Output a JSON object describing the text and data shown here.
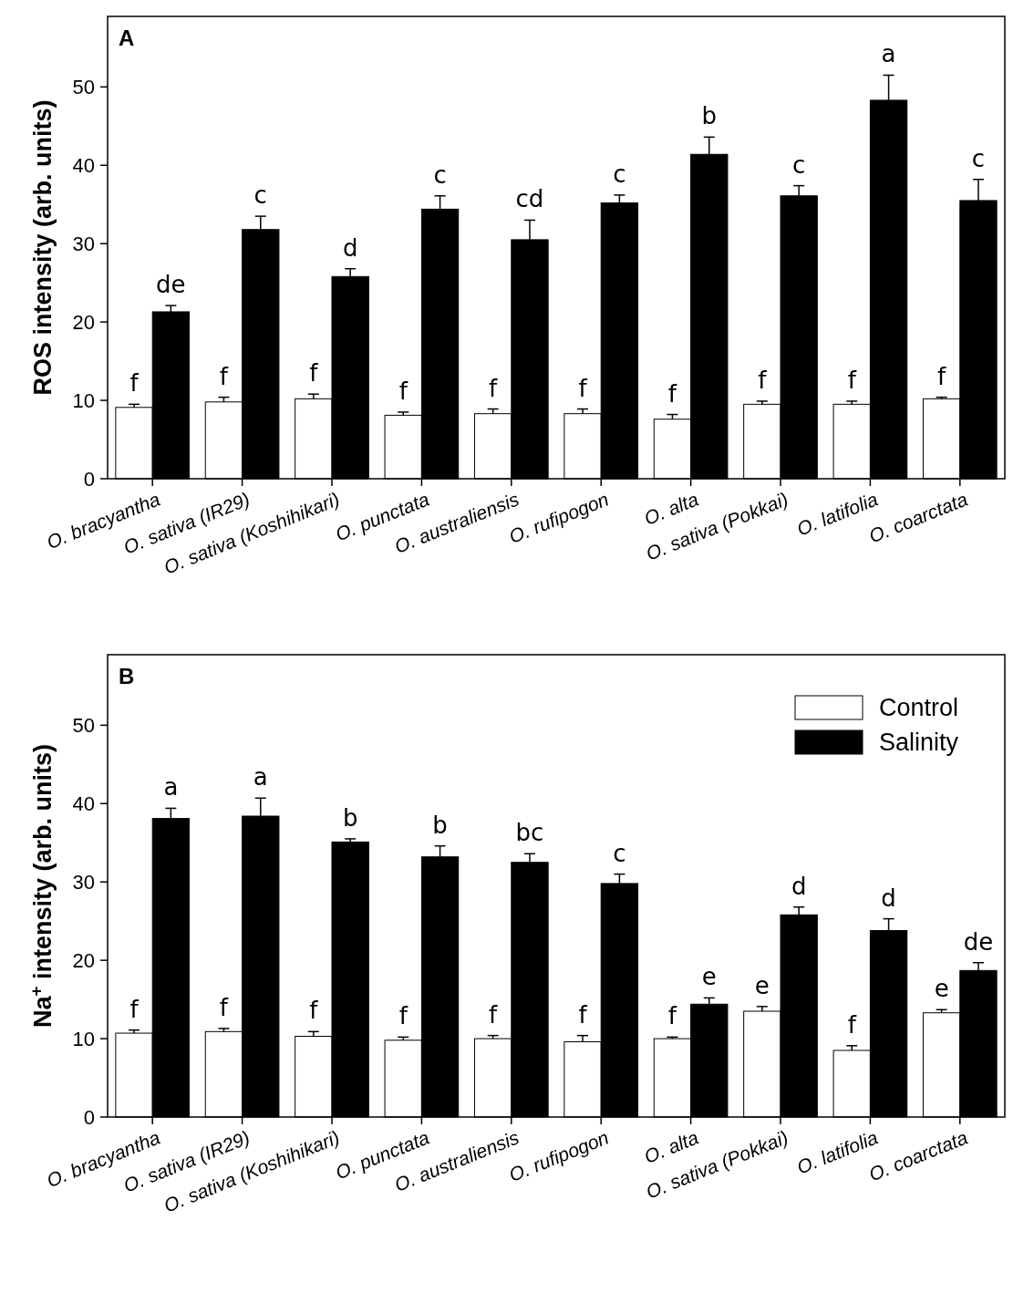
{
  "chart_data": [
    {
      "type": "bar",
      "title": "A",
      "ylabel": "ROS intensity (arb. units)",
      "categories": [
        "O. bracyantha",
        "O. sativa (IR29)",
        "O. sativa (Koshihikari)",
        "O. punctata",
        "O. australiensis",
        "O. rufipogon",
        "O. alta",
        "O. sativa (Pokkai)",
        "O. latifolia",
        "O. coarctata"
      ],
      "series": [
        {
          "color": "#ffffff",
          "values": [
            9.1,
            9.8,
            10.2,
            8.1,
            8.3,
            8.3,
            7.6,
            9.5,
            9.5,
            10.2
          ],
          "errors": [
            0.4,
            0.6,
            0.6,
            0.4,
            0.6,
            0.6,
            0.6,
            0.4,
            0.4,
            0.2
          ]
        },
        {
          "color": "#000000",
          "values": [
            21.3,
            31.8,
            25.8,
            34.4,
            30.5,
            35.2,
            41.4,
            36.1,
            48.3,
            35.5
          ],
          "errors": [
            0.8,
            1.7,
            1.0,
            1.7,
            2.5,
            1.0,
            2.2,
            1.3,
            3.2,
            2.7
          ]
        }
      ],
      "ylim": [
        0,
        59
      ],
      "yticks": [
        0,
        10,
        20,
        30,
        40,
        50
      ],
      "legend": false,
      "annotations": [
        {
          "text": "f",
          "x": "O. bracyantha",
          "y": 9.1
        },
        {
          "text": "de",
          "x": "O. bracyantha",
          "y": 21.3
        },
        {
          "text": "f",
          "x": "O. sativa (IR29)",
          "y": 9.8
        },
        {
          "text": "c",
          "x": "O. sativa (IR29)",
          "y": 31.8
        },
        {
          "text": "f",
          "x": "O. sativa (Koshihikari)",
          "y": 10.2
        },
        {
          "text": "d",
          "x": "O. sativa (Koshihikari)",
          "y": 25.8
        },
        {
          "text": "f",
          "x": "O. punctata",
          "y": 8.1
        },
        {
          "text": "c",
          "x": "O. punctata",
          "y": 34.4
        },
        {
          "text": "f",
          "x": "O. australiensis",
          "y": 8.3
        },
        {
          "text": "cd",
          "x": "O. australiensis",
          "y": 30.5
        },
        {
          "text": "f",
          "x": "O. rufipogon",
          "y": 8.3
        },
        {
          "text": "c",
          "x": "O. rufipogon",
          "y": 35.2
        },
        {
          "text": "f",
          "x": "O. alta",
          "y": 7.6
        },
        {
          "text": "b",
          "x": "O. alta",
          "y": 41.4
        },
        {
          "text": "f",
          "x": "O. sativa (Pokkai)",
          "y": 9.5
        },
        {
          "text": "c",
          "x": "O. sativa (Pokkai)",
          "y": 36.1
        },
        {
          "text": "f",
          "x": "O. latifolia",
          "y": 9.5
        },
        {
          "text": "a",
          "x": "O. latifolia",
          "y": 48.3
        },
        {
          "text": "f",
          "x": "O. coarctata",
          "y": 10.2
        },
        {
          "text": "c",
          "x": "O. coarctata",
          "y": 35.5
        }
      ]
    },
    {
      "type": "bar",
      "title": "B",
      "ylabel": "Na$^{+}$ intensity (arb. units)",
      "categories": [
        "O. bracyantha",
        "O. sativa (IR29)",
        "O. sativa (Koshihikari)",
        "O. punctata",
        "O. australiensis",
        "O. rufipogon",
        "O. alta",
        "O. sativa (Pokkai)",
        "O. latifolia",
        "O. coarctata"
      ],
      "series": [
        {
          "name": "Control",
          "color": "#ffffff",
          "values": [
            10.7,
            10.9,
            10.3,
            9.8,
            10.0,
            9.6,
            10.0,
            13.5,
            8.5,
            13.3
          ],
          "errors": [
            0.4,
            0.4,
            0.6,
            0.4,
            0.4,
            0.8,
            0.2,
            0.6,
            0.6,
            0.4
          ]
        },
        {
          "name": "Salinity",
          "color": "#000000",
          "values": [
            38.1,
            38.4,
            35.1,
            33.2,
            32.5,
            29.8,
            14.4,
            25.8,
            23.8,
            18.7
          ],
          "errors": [
            1.3,
            2.3,
            0.4,
            1.4,
            1.1,
            1.2,
            0.8,
            1.0,
            1.5,
            1.0
          ]
        }
      ],
      "ylim": [
        0,
        59
      ],
      "yticks": [
        0,
        10,
        20,
        30,
        40,
        50
      ],
      "legend": "top right",
      "annotations": [
        {
          "text": "f",
          "x": "O. bracyantha",
          "y": 10.7
        },
        {
          "text": "a",
          "x": "O. bracyantha",
          "y": 38.1
        },
        {
          "text": "f",
          "x": "O. sativa (IR29)",
          "y": 10.9
        },
        {
          "text": "a",
          "x": "O. sativa (IR29)",
          "y": 38.4
        },
        {
          "text": "f",
          "x": "O. sativa (Koshihikari)",
          "y": 10.3
        },
        {
          "text": "b",
          "x": "O. sativa (Koshihikari)",
          "y": 35.1
        },
        {
          "text": "f",
          "x": "O. punctata",
          "y": 9.8
        },
        {
          "text": "b",
          "x": "O. punctata",
          "y": 33.2
        },
        {
          "text": "f",
          "x": "O. australiensis",
          "y": 10.0
        },
        {
          "text": "bc",
          "x": "O. australiensis",
          "y": 32.5
        },
        {
          "text": "f",
          "x": "O. rufipogon",
          "y": 9.6
        },
        {
          "text": "c",
          "x": "O. rufipogon",
          "y": 29.8
        },
        {
          "text": "f",
          "x": "O. alta",
          "y": 10.0
        },
        {
          "text": "e",
          "x": "O. alta",
          "y": 14.4
        },
        {
          "text": "e",
          "x": "O. sativa (Pokkai)",
          "y": 13.5
        },
        {
          "text": "d",
          "x": "O. sativa (Pokkai)",
          "y": 25.8
        },
        {
          "text": "f",
          "x": "O. latifolia",
          "y": 8.5
        },
        {
          "text": "d",
          "x": "O. latifolia",
          "y": 23.8
        },
        {
          "text": "e",
          "x": "O. coarctata",
          "y": 13.3
        },
        {
          "text": "de",
          "x": "O. coarctata",
          "y": 18.7
        }
      ]
    }
  ]
}
